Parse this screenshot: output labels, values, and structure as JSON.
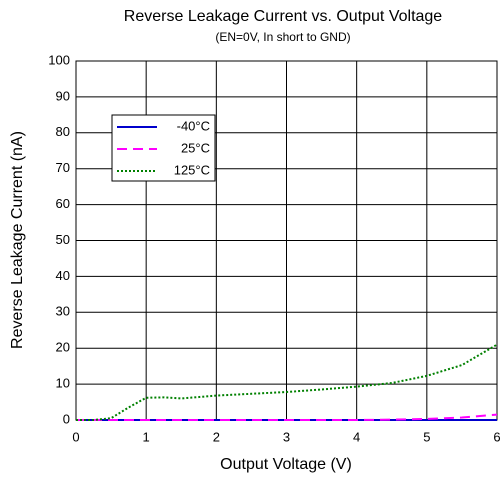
{
  "chart_data": {
    "type": "line",
    "title": "Reverse Leakage Current vs. Output Voltage",
    "subtitle": "(EN=0V, In short to GND)",
    "x_label": "Output Voltage (V)",
    "y_label": "Reverse Leakage Current (nA)",
    "x": [
      0,
      0.25,
      0.5,
      0.75,
      1,
      1.25,
      1.5,
      2,
      2.5,
      3,
      3.5,
      4,
      4.5,
      5,
      5.5,
      6
    ],
    "series": [
      {
        "name": "-40°C",
        "color": "#0000cc",
        "style": "solid",
        "values": [
          0,
          0,
          0,
          0,
          0,
          0,
          0,
          0,
          0,
          0,
          0,
          0,
          0,
          0,
          0,
          0
        ]
      },
      {
        "name": "25°C",
        "color": "#ff00ff",
        "style": "dashed",
        "values": [
          0,
          0,
          0,
          0,
          0,
          0,
          0,
          0,
          0,
          0,
          0,
          0,
          0.1,
          0.3,
          0.7,
          1.5
        ]
      },
      {
        "name": "125°C",
        "color": "#008000",
        "style": "dotted",
        "values": [
          0,
          0,
          0.5,
          3.5,
          6.2,
          6.3,
          6,
          6.8,
          7.3,
          7.8,
          8.5,
          9.3,
          10.3,
          12.3,
          15.3,
          21
        ]
      }
    ],
    "xlim": [
      0,
      6
    ],
    "xticks": [
      0,
      1,
      2,
      3,
      4,
      5,
      6
    ],
    "ylim": [
      0,
      100
    ],
    "yticks": [
      0,
      10,
      20,
      30,
      40,
      50,
      60,
      70,
      80,
      90,
      100
    ],
    "grid": true,
    "legend": "upper left"
  }
}
